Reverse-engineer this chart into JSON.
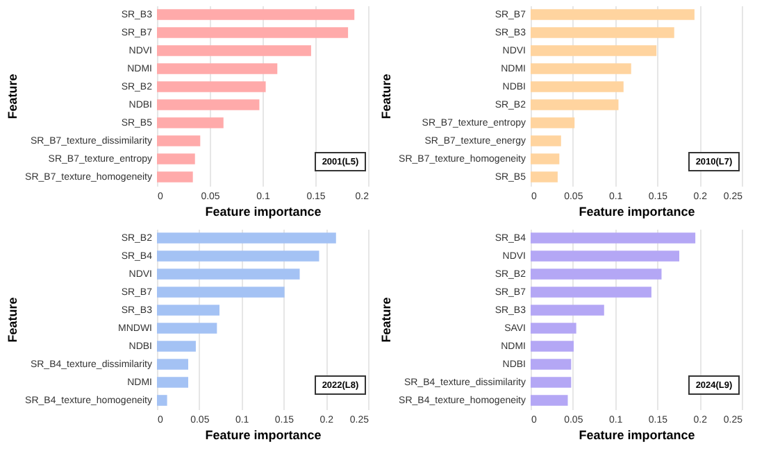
{
  "chart_data": [
    {
      "type": "bar",
      "orientation": "horizontal",
      "xlabel": "Feature importance",
      "ylabel": "Feature",
      "categories": [
        "SR_B3",
        "SR_B7",
        "NDVI",
        "NDMI",
        "SR_B2",
        "NDBI",
        "SR_B5",
        "SR_B7_texture_dissimilarity",
        "SR_B7_texture_entropy",
        "SR_B7_texture_homogeneity"
      ],
      "values": [
        0.187,
        0.181,
        0.146,
        0.114,
        0.103,
        0.097,
        0.063,
        0.041,
        0.036,
        0.034
      ],
      "color": "#ffaaaa",
      "xlim": [
        0,
        0.2
      ],
      "xticks": [
        0,
        0.05,
        0.1,
        0.15,
        0.2
      ],
      "grid": "x",
      "annotations": [
        "2001(L5)"
      ]
    },
    {
      "type": "bar",
      "orientation": "horizontal",
      "xlabel": "Feature importance",
      "ylabel": "Feature",
      "categories": [
        "SR_B7",
        "SR_B3",
        "NDVI",
        "NDMI",
        "NDBI",
        "SR_B2",
        "SR_B7_texture_entropy",
        "SR_B7_texture_energy",
        "SR_B7_texture_homogeneity",
        "SR_B5"
      ],
      "values": [
        0.194,
        0.17,
        0.149,
        0.119,
        0.11,
        0.104,
        0.052,
        0.036,
        0.034,
        0.032
      ],
      "color": "#ffd49f",
      "xlim": [
        0,
        0.25
      ],
      "xticks": [
        0,
        0.05,
        0.1,
        0.15,
        0.2,
        0.25
      ],
      "grid": "x",
      "annotations": [
        "2010(L7)"
      ]
    },
    {
      "type": "bar",
      "orientation": "horizontal",
      "xlabel": "Feature importance",
      "ylabel": "Feature",
      "categories": [
        "SR_B2",
        "SR_B4",
        "NDVI",
        "SR_B7",
        "SR_B3",
        "MNDWI",
        "NDBI",
        "SR_B4_texture_dissimilarity",
        "NDMI",
        "SR_B4_texture_homogeneity"
      ],
      "values": [
        0.212,
        0.192,
        0.169,
        0.151,
        0.074,
        0.071,
        0.046,
        0.037,
        0.037,
        0.012
      ],
      "color": "#a4c2f4",
      "xlim": [
        0,
        0.25
      ],
      "xticks": [
        0,
        0.05,
        0.1,
        0.15,
        0.2,
        0.25
      ],
      "grid": "x",
      "annotations": [
        "2022(L8)"
      ]
    },
    {
      "type": "bar",
      "orientation": "horizontal",
      "xlabel": "Feature importance",
      "ylabel": "Feature",
      "categories": [
        "SR_B4",
        "NDVI",
        "SR_B2",
        "SR_B7",
        "SR_B3",
        "SAVI",
        "NDMI",
        "NDBI",
        "SR_B4_texture_dissimilarity",
        "SR_B4_texture_homogeneity"
      ],
      "values": [
        0.195,
        0.176,
        0.155,
        0.143,
        0.087,
        0.054,
        0.051,
        0.048,
        0.048,
        0.044
      ],
      "color": "#b4a7f5",
      "xlim": [
        0,
        0.25
      ],
      "xticks": [
        0,
        0.05,
        0.1,
        0.15,
        0.2,
        0.25
      ],
      "grid": "x",
      "annotations": [
        "2024(L9)"
      ]
    }
  ]
}
